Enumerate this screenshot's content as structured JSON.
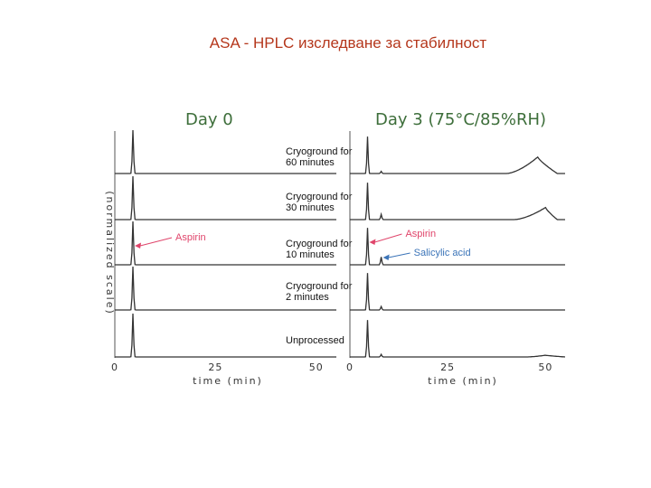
{
  "slide_title": "ASA - HPLC изследване за стабилност",
  "chart_data": {
    "type": "line",
    "ylabel": "(normalized scale)",
    "xlabel": "time (min)",
    "xlim": [
      0,
      55
    ],
    "x_ticks": [
      0,
      25,
      50
    ],
    "trace_labels": [
      "Cryoground for 60 minutes",
      "Cryoground for 30 minutes",
      "Cryoground for 10 minutes",
      "Cryoground for 2 minutes",
      "Unprocessed"
    ],
    "panels": [
      {
        "title": "Day 0",
        "series": [
          {
            "name": "Cryoground for 60 minutes",
            "peaks": [
              [
                4.5,
                1.0
              ]
            ],
            "hump": null
          },
          {
            "name": "Cryoground for 30 minutes",
            "peaks": [
              [
                4.5,
                1.0
              ]
            ],
            "hump": null
          },
          {
            "name": "Cryoground for 10 minutes",
            "peaks": [
              [
                4.5,
                1.0
              ]
            ],
            "hump": null
          },
          {
            "name": "Cryoground for 2 minutes",
            "peaks": [
              [
                4.5,
                1.0
              ]
            ],
            "hump": null
          },
          {
            "name": "Unprocessed",
            "peaks": [
              [
                4.5,
                1.0
              ]
            ],
            "hump": null
          }
        ],
        "annotations": [
          {
            "text": "Aspirin",
            "color": "#e0456b",
            "x": 4.5
          }
        ]
      },
      {
        "title": "Day 3 (75°C/85%RH)",
        "series": [
          {
            "name": "Cryoground for 60 minutes",
            "peaks": [
              [
                4.5,
                0.85
              ],
              [
                8,
                0.05
              ]
            ],
            "hump": {
              "start": 40,
              "peak": 48,
              "end": 53,
              "height": 0.38
            }
          },
          {
            "name": "Cryoground for 30 minutes",
            "peaks": [
              [
                4.5,
                0.85
              ],
              [
                8,
                0.12
              ]
            ],
            "hump": {
              "start": 42,
              "peak": 50,
              "end": 53,
              "height": 0.28
            }
          },
          {
            "name": "Cryoground for 10 minutes",
            "peaks": [
              [
                4.5,
                0.85
              ],
              [
                8,
                0.18
              ]
            ],
            "hump": null
          },
          {
            "name": "Cryoground for 2 minutes",
            "peaks": [
              [
                4.5,
                0.85
              ],
              [
                8,
                0.08
              ]
            ],
            "hump": null
          },
          {
            "name": "Unprocessed",
            "peaks": [
              [
                4.5,
                0.85
              ],
              [
                8,
                0.06
              ]
            ],
            "hump": {
              "start": 45,
              "peak": 50,
              "end": 55,
              "height": 0.04
            }
          }
        ],
        "annotations": [
          {
            "text": "Aspirin",
            "color": "#e0456b",
            "x": 4.5
          },
          {
            "text": "Salicylic acid",
            "color": "#3b74b8",
            "x": 8
          }
        ]
      }
    ]
  }
}
